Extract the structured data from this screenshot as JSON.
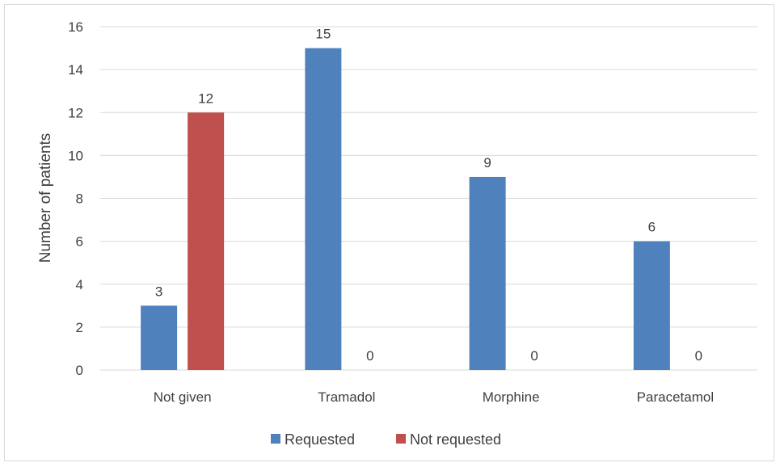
{
  "chart_data": {
    "type": "bar",
    "categories": [
      "Not given",
      "Tramadol",
      "Morphine",
      "Paracetamol"
    ],
    "series": [
      {
        "name": "Requested",
        "values": [
          3,
          15,
          9,
          6
        ],
        "color": "#4f81bd"
      },
      {
        "name": "Not requested",
        "values": [
          12,
          0,
          0,
          0
        ],
        "color": "#c0504d"
      }
    ],
    "title": "",
    "xlabel": "",
    "ylabel": "Number of patients",
    "ylim": [
      0,
      16
    ],
    "yticks": [
      0,
      2,
      4,
      6,
      8,
      10,
      12,
      14,
      16
    ],
    "grid": true,
    "legend_position": "bottom",
    "data_labels": true,
    "gridline_color": "#d9d9d9"
  }
}
